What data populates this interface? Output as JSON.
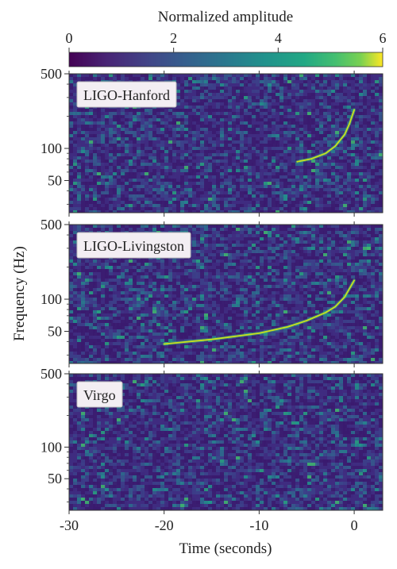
{
  "chart_data": {
    "type": "heatmap",
    "colorbar": {
      "label": "Normalized amplitude",
      "range": [
        0,
        6
      ],
      "ticks": [
        0,
        2,
        4,
        6
      ],
      "tick_labels": [
        "0",
        "2",
        "4",
        "6"
      ],
      "colormap": "viridis"
    },
    "xlabel": "Time (seconds)",
    "xlim": [
      -30,
      3
    ],
    "xticks": [
      -30,
      -20,
      -10,
      0
    ],
    "xtick_labels": [
      "-30",
      "-20",
      "-10",
      "0"
    ],
    "ylabel": "Frequency (Hz)",
    "yscale": "log",
    "ylim": [
      25,
      500
    ],
    "yticks": [
      50,
      100,
      500
    ],
    "ytick_labels": [
      "50",
      "100",
      "500"
    ],
    "panels": [
      {
        "detector": "LIGO-Hanford",
        "chirp": {
          "visible": true,
          "t": [
            -6,
            -4.5,
            -3,
            -2,
            -1,
            -0.5,
            0
          ],
          "f": [
            75,
            80,
            90,
            105,
            135,
            170,
            230
          ]
        }
      },
      {
        "detector": "LIGO-Livingston",
        "chirp": {
          "visible": true,
          "t": [
            -20,
            -15,
            -10,
            -7,
            -5,
            -3,
            -2,
            -1,
            0
          ],
          "f": [
            38,
            42,
            48,
            55,
            63,
            75,
            85,
            105,
            150
          ]
        }
      },
      {
        "detector": "Virgo",
        "chirp": {
          "visible": false,
          "t": [],
          "f": []
        }
      }
    ]
  }
}
